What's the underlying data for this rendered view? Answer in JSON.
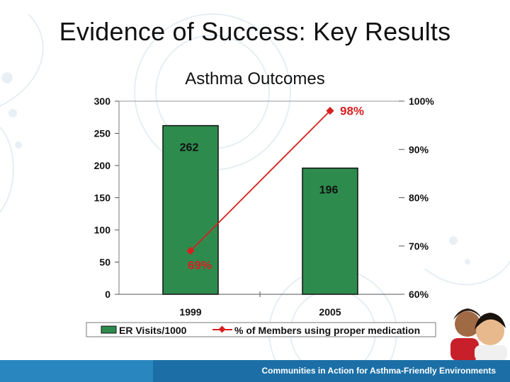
{
  "slide": {
    "title": "Evidence of Success:  Key Results",
    "footer_text": "Communities in Action for Asthma-Friendly Environments"
  },
  "chart_data": {
    "type": "bar",
    "title": "Asthma Outcomes",
    "categories": [
      "1999",
      "2005"
    ],
    "series": [
      {
        "name": "ER Visits/1000",
        "kind": "bar",
        "axis": "left",
        "values": [
          262,
          196
        ],
        "labels": [
          "262",
          "196"
        ],
        "color": "#2e8b4e"
      },
      {
        "name": "% of Members using proper medication",
        "kind": "line",
        "axis": "right",
        "values": [
          69,
          98
        ],
        "labels": [
          "69%",
          "98%"
        ],
        "color": "#d62020"
      }
    ],
    "y_left": {
      "lim": [
        0,
        300
      ],
      "ticks": [
        "0",
        "50",
        "100",
        "150",
        "200",
        "250",
        "300"
      ]
    },
    "y_right": {
      "lim": [
        60,
        100
      ],
      "ticks": [
        "60%",
        "70%",
        "80%",
        "90%",
        "100%"
      ]
    },
    "grid": false,
    "legend_position": "bottom"
  }
}
